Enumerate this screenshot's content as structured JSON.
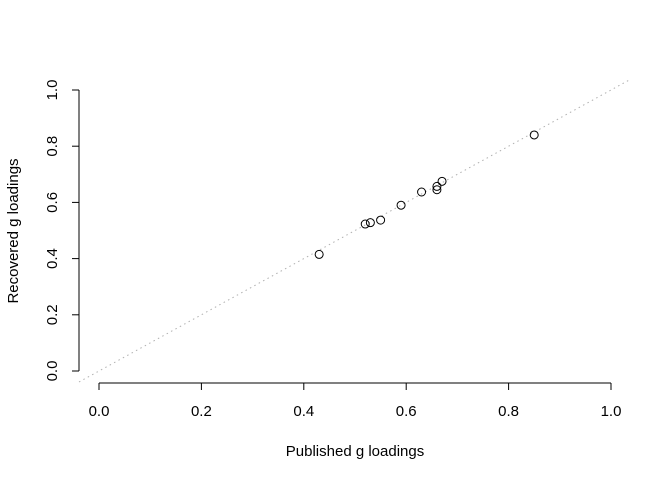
{
  "chart_data": {
    "type": "scatter",
    "title": "",
    "xlabel": "Published g loadings",
    "ylabel": "Recovered g loadings",
    "xlim": [
      0.0,
      1.0
    ],
    "ylim": [
      0.0,
      1.0
    ],
    "x_ticks": [
      "0.0",
      "0.2",
      "0.4",
      "0.6",
      "0.8",
      "1.0"
    ],
    "y_ticks": [
      "0.0",
      "0.2",
      "0.4",
      "0.6",
      "0.8",
      "1.0"
    ],
    "grid": false,
    "legend": "none",
    "reference_line": {
      "slope": 1,
      "intercept": 0,
      "style": "dotted",
      "color": "#b0b0b0"
    },
    "series": [
      {
        "points": [
          {
            "x": 0.43,
            "y": 0.415
          },
          {
            "x": 0.52,
            "y": 0.523
          },
          {
            "x": 0.53,
            "y": 0.528
          },
          {
            "x": 0.55,
            "y": 0.537
          },
          {
            "x": 0.59,
            "y": 0.59
          },
          {
            "x": 0.63,
            "y": 0.637
          },
          {
            "x": 0.66,
            "y": 0.645
          },
          {
            "x": 0.66,
            "y": 0.657
          },
          {
            "x": 0.67,
            "y": 0.675
          },
          {
            "x": 0.85,
            "y": 0.84
          }
        ]
      }
    ]
  }
}
